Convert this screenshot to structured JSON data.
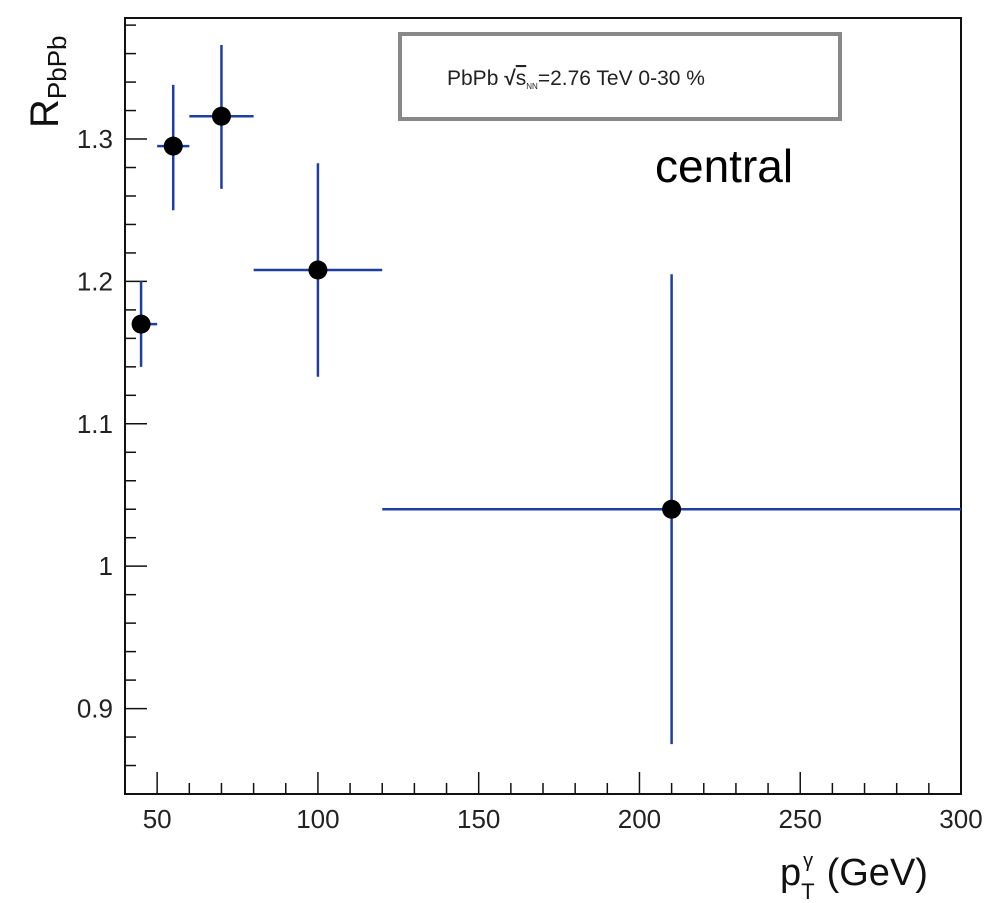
{
  "chart_data": {
    "type": "scatter",
    "title": "",
    "xlabel": {
      "main": "p",
      "sup": "γ",
      "sub": "T",
      "unit": "(GeV)"
    },
    "ylabel": {
      "main": "R",
      "sub": "PbPb"
    },
    "xlim": [
      40,
      300
    ],
    "ylim": [
      0.84,
      1.385
    ],
    "x_ticks": [
      50,
      100,
      150,
      200,
      250,
      300
    ],
    "y_ticks": [
      0.9,
      1.0,
      1.1,
      1.2,
      1.3
    ],
    "y_tick_labels": [
      "0.9",
      "1",
      "1.1",
      "1.2",
      "1.3"
    ],
    "grid": false,
    "legend": {
      "text_before": "PbPb",
      "sqrt_s": "s",
      "sqrt_s_sub": "NN",
      "text_after": "=2.76 TeV 0-30 %",
      "placement": "top-right"
    },
    "annotation": "central",
    "marker_color": "#000000",
    "errorbar_color": "#1f3fa0",
    "points": [
      {
        "x": 45,
        "y": 1.17,
        "xerr": [
          45,
          50
        ],
        "yerr": [
          1.14,
          1.2
        ]
      },
      {
        "x": 55,
        "y": 1.295,
        "xerr": [
          50,
          60
        ],
        "yerr": [
          1.25,
          1.338
        ]
      },
      {
        "x": 70,
        "y": 1.316,
        "xerr": [
          60,
          80
        ],
        "yerr": [
          1.265,
          1.366
        ]
      },
      {
        "x": 100,
        "y": 1.208,
        "xerr": [
          80,
          120
        ],
        "yerr": [
          1.133,
          1.283
        ]
      },
      {
        "x": 210,
        "y": 1.04,
        "xerr": [
          120,
          300
        ],
        "yerr": [
          0.875,
          1.205
        ]
      }
    ]
  }
}
